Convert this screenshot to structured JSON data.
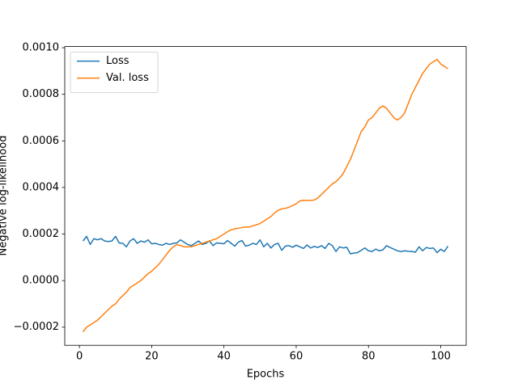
{
  "chart_data": {
    "type": "line",
    "xlabel": "Epochs",
    "ylabel": "Negative log-likelihood",
    "x": [
      1,
      2,
      3,
      4,
      5,
      6,
      7,
      8,
      9,
      10,
      11,
      12,
      13,
      14,
      15,
      16,
      17,
      18,
      19,
      20,
      21,
      22,
      23,
      24,
      25,
      26,
      27,
      28,
      29,
      30,
      31,
      32,
      33,
      34,
      35,
      36,
      37,
      38,
      39,
      40,
      41,
      42,
      43,
      44,
      45,
      46,
      47,
      48,
      49,
      50,
      51,
      52,
      53,
      54,
      55,
      56,
      57,
      58,
      59,
      60,
      61,
      62,
      63,
      64,
      65,
      66,
      67,
      68,
      69,
      70,
      71,
      72,
      73,
      74,
      75,
      76,
      77,
      78,
      79,
      80,
      81,
      82,
      83,
      84,
      85,
      86,
      87,
      88,
      89,
      90,
      91,
      92,
      93,
      94,
      95,
      96,
      97,
      98,
      99,
      100,
      101,
      102
    ],
    "series": [
      {
        "name": "Loss",
        "color": "#1f77b4",
        "values": [
          0.00017,
          0.00019,
          0.000155,
          0.00018,
          0.000175,
          0.00018,
          0.00017,
          0.000168,
          0.00017,
          0.00019,
          0.000162,
          0.00016,
          0.000145,
          0.00017,
          0.00018,
          0.00016,
          0.00017,
          0.000165,
          0.000175,
          0.000158,
          0.00016,
          0.000155,
          0.000152,
          0.00016,
          0.000155,
          0.00016,
          0.000162,
          0.000175,
          0.000165,
          0.000155,
          0.00015,
          0.00016,
          0.00017,
          0.000155,
          0.00016,
          0.00017,
          0.00015,
          0.000162,
          0.00016,
          0.000158,
          0.000172,
          0.00016,
          0.000148,
          0.000165,
          0.000172,
          0.000148,
          0.000152,
          0.00016,
          0.000155,
          0.000175,
          0.000145,
          0.00016,
          0.00014,
          0.000155,
          0.00016,
          0.00013,
          0.000148,
          0.00015,
          0.000143,
          0.000152,
          0.000145,
          0.000138,
          0.000153,
          0.00014,
          0.000147,
          0.000142,
          0.00015,
          0.000138,
          0.00016,
          0.00015,
          0.000125,
          0.000145,
          0.00014,
          0.000143,
          0.000115,
          0.000118,
          0.00012,
          0.00013,
          0.00014,
          0.000128,
          0.000125,
          0.000135,
          0.000128,
          0.000132,
          0.00015,
          0.000142,
          0.000135,
          0.000128,
          0.000125,
          0.000128,
          0.000126,
          0.000125,
          0.000122,
          0.000145,
          0.000128,
          0.000142,
          0.000138,
          0.00014,
          0.00012,
          0.000135,
          0.000125,
          0.000148
        ]
      },
      {
        "name": "Val. loss",
        "color": "#ff7f0e",
        "values": [
          -0.00022,
          -0.0002,
          -0.00019,
          -0.00018,
          -0.00017,
          -0.000155,
          -0.00014,
          -0.000125,
          -0.00011,
          -0.0001,
          -8e-05,
          -6.5e-05,
          -5e-05,
          -3e-05,
          -2e-05,
          -1e-05,
          0,
          1.5e-05,
          3e-05,
          4e-05,
          5.5e-05,
          7e-05,
          9e-05,
          0.00011,
          0.00013,
          0.000145,
          0.000155,
          0.00015,
          0.000145,
          0.000145,
          0.000145,
          0.00015,
          0.000155,
          0.00016,
          0.000165,
          0.00017,
          0.000175,
          0.00018,
          0.00019,
          0.0002,
          0.00021,
          0.000218,
          0.000222,
          0.000225,
          0.000228,
          0.00023,
          0.00023,
          0.000235,
          0.00024,
          0.000245,
          0.000255,
          0.000265,
          0.000275,
          0.00029,
          0.000302,
          0.000308,
          0.00031,
          0.000315,
          0.000322,
          0.00033,
          0.000342,
          0.000345,
          0.000344,
          0.000344,
          0.000346,
          0.000355,
          0.00037,
          0.000385,
          0.0004,
          0.000415,
          0.000425,
          0.00044,
          0.00046,
          0.00049,
          0.00052,
          0.00056,
          0.0006,
          0.00064,
          0.00066,
          0.00069,
          0.0007,
          0.00072,
          0.00074,
          0.00075,
          0.00074,
          0.00072,
          0.0007,
          0.00069,
          0.0007,
          0.00072,
          0.00076,
          0.0008,
          0.00083,
          0.00086,
          0.00089,
          0.00091,
          0.00093,
          0.00094,
          0.00095,
          0.00093,
          0.00092,
          0.00091
        ]
      }
    ],
    "xlim": [
      -4.05,
      107.05
    ],
    "xticks": [
      0,
      20,
      40,
      60,
      80,
      100
    ],
    "ylim": [
      -0.000278,
      0.001005
    ],
    "yticks": [
      {
        "value": -0.0002,
        "label": "−0.0002"
      },
      {
        "value": 0,
        "label": "0.0000"
      },
      {
        "value": 0.0002,
        "label": "0.0002"
      },
      {
        "value": 0.0004,
        "label": "0.0004"
      },
      {
        "value": 0.0006,
        "label": "0.0006"
      },
      {
        "value": 0.0008,
        "label": "0.0008"
      },
      {
        "value": 0.001,
        "label": "0.0010"
      }
    ],
    "grid": false,
    "legend": "upper-left"
  }
}
